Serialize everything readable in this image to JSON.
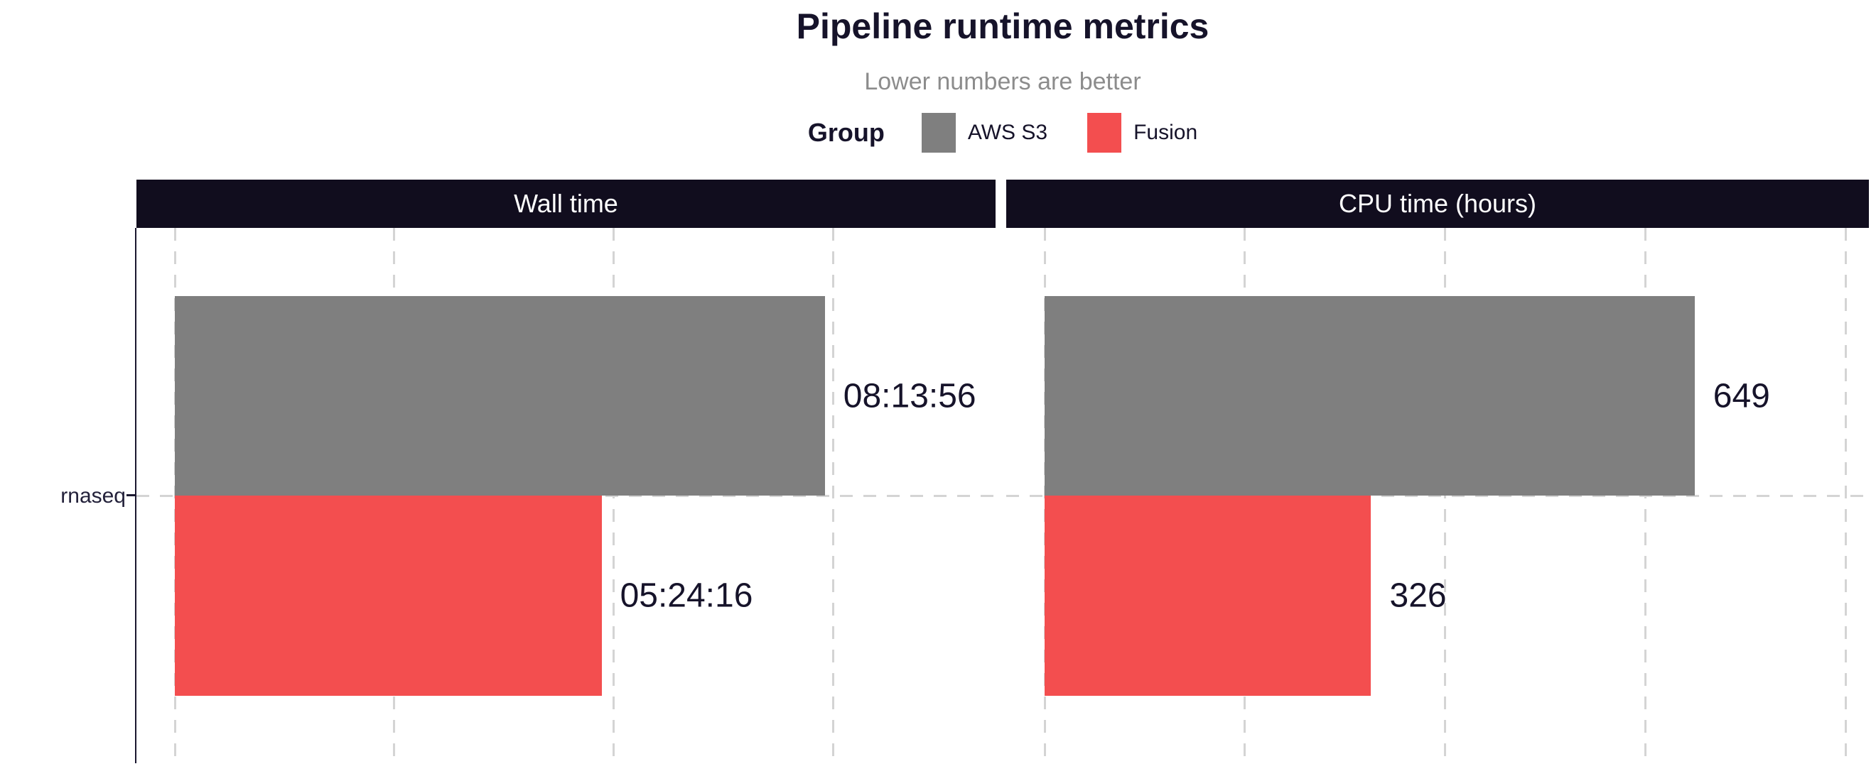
{
  "colors": {
    "background": "#FFFFFF",
    "title_text": "#16132A",
    "subtitle_text": "#8C8C8C",
    "strip_bg": "#110D1E",
    "strip_text": "#FFFFFF",
    "gridline": "#D4D4D4",
    "axis_line": "#1B1830",
    "bar_label_text": "#16132A",
    "aws_s3": "#7F7F7F",
    "fusion": "#F34E4F"
  },
  "chart_data": {
    "type": "bar",
    "orientation": "horizontal",
    "title": "Pipeline runtime metrics",
    "subtitle": "Lower numbers are better",
    "legend": {
      "title": "Group",
      "position": "top-center",
      "entries": [
        {
          "label": "AWS S3",
          "color": "#7F7F7F"
        },
        {
          "label": "Fusion",
          "color": "#F34E4F"
        }
      ]
    },
    "category_axis": {
      "categories": [
        "rnaseq"
      ]
    },
    "grid": "dashed vertical major gridlines + dashed category line",
    "panels": [
      {
        "title": "Wall time",
        "value_unit": "seconds",
        "breaks": [
          0,
          10000,
          20000,
          30000
        ],
        "bars": [
          {
            "category": "rnaseq",
            "group": "AWS S3",
            "value": 29636,
            "label": "08:13:56"
          },
          {
            "category": "rnaseq",
            "group": "Fusion",
            "value": 19456,
            "label": "05:24:16"
          }
        ],
        "layout": {
          "zero_frac": 0.0447,
          "frac_per_unit": 2.553e-05
        }
      },
      {
        "title": "CPU time (hours)",
        "value_unit": "hours",
        "breaks": [
          0,
          200,
          400,
          600,
          800
        ],
        "bars": [
          {
            "category": "rnaseq",
            "group": "AWS S3",
            "value": 649,
            "label": "649"
          },
          {
            "category": "rnaseq",
            "group": "Fusion",
            "value": 326,
            "label": "326"
          }
        ],
        "layout": {
          "zero_frac": 0.0445,
          "frac_per_unit": 0.001161
        }
      }
    ]
  }
}
